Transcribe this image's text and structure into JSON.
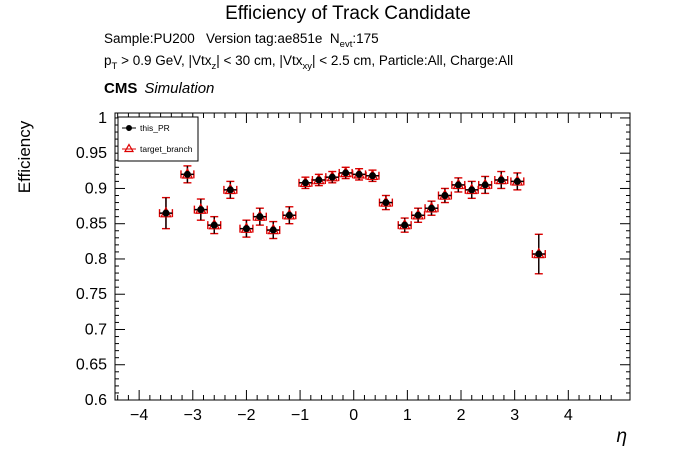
{
  "header": {
    "title": "Efficiency of Track Candidate",
    "sample_line": [
      "Sample:PU200   Version tag:ae851e  N",
      "evt",
      ":175"
    ],
    "cuts_line": [
      "p",
      "T",
      " > 0.9 GeV, |Vtx",
      "z",
      "| < 30 cm, |Vtx",
      "xy",
      "| < 2.5 cm, Particle:All, Charge:All"
    ],
    "cms": "CMS",
    "cms_sub": "Simulation"
  },
  "chart_data": {
    "type": "scatter",
    "title": "Efficiency of Track Candidate",
    "xlabel": "η",
    "ylabel": "Efficiency",
    "xlim": [
      -4.45,
      5.15
    ],
    "ylim": [
      0.6,
      1.007
    ],
    "x_ticks": [
      -4,
      -3,
      -2,
      -1,
      0,
      1,
      2,
      3,
      4
    ],
    "y_ticks": [
      0.6,
      0.65,
      0.7,
      0.75,
      0.8,
      0.85,
      0.9,
      0.95,
      1
    ],
    "x_minor_step": 0.2,
    "y_minor_step": 0.01,
    "x": [
      -3.5,
      -3.1,
      -2.85,
      -2.6,
      -2.3,
      -2.0,
      -1.75,
      -1.5,
      -1.2,
      -0.9,
      -0.65,
      -0.4,
      -0.15,
      0.1,
      0.35,
      0.6,
      0.95,
      1.2,
      1.45,
      1.7,
      1.95,
      2.2,
      2.45,
      2.75,
      3.05,
      3.45
    ],
    "ex": 0.12,
    "series": [
      {
        "name": "this_PR",
        "color": "#000000",
        "marker": "circle",
        "y": [
          0.865,
          0.92,
          0.87,
          0.848,
          0.898,
          0.843,
          0.86,
          0.841,
          0.862,
          0.908,
          0.912,
          0.916,
          0.922,
          0.92,
          0.918,
          0.88,
          0.848,
          0.862,
          0.872,
          0.89,
          0.905,
          0.898,
          0.905,
          0.912,
          0.91,
          0.807
        ],
        "ey": [
          0.022,
          0.012,
          0.015,
          0.012,
          0.012,
          0.012,
          0.012,
          0.012,
          0.012,
          0.008,
          0.008,
          0.008,
          0.008,
          0.008,
          0.008,
          0.01,
          0.01,
          0.01,
          0.01,
          0.01,
          0.01,
          0.012,
          0.012,
          0.012,
          0.012,
          0.028
        ]
      },
      {
        "name": "target_branch",
        "color": "#dd0000",
        "marker": "triangle",
        "y": [
          0.865,
          0.92,
          0.87,
          0.848,
          0.898,
          0.843,
          0.86,
          0.841,
          0.862,
          0.908,
          0.912,
          0.916,
          0.922,
          0.92,
          0.918,
          0.88,
          0.848,
          0.862,
          0.872,
          0.89,
          0.905,
          0.898,
          0.905,
          0.912,
          0.91,
          0.807
        ],
        "ey": [
          0.022,
          0.012,
          0.015,
          0.012,
          0.012,
          0.012,
          0.012,
          0.012,
          0.012,
          0.008,
          0.008,
          0.008,
          0.008,
          0.008,
          0.008,
          0.01,
          0.01,
          0.01,
          0.01,
          0.01,
          0.01,
          0.012,
          0.012,
          0.012,
          0.012,
          0.028
        ]
      }
    ],
    "legend": {
      "position": "top-left",
      "entries": [
        "this_PR",
        "target_branch"
      ]
    },
    "grid": false
  },
  "colors": {
    "frame": "#000000",
    "red": "#dd0000",
    "black": "#000000"
  }
}
